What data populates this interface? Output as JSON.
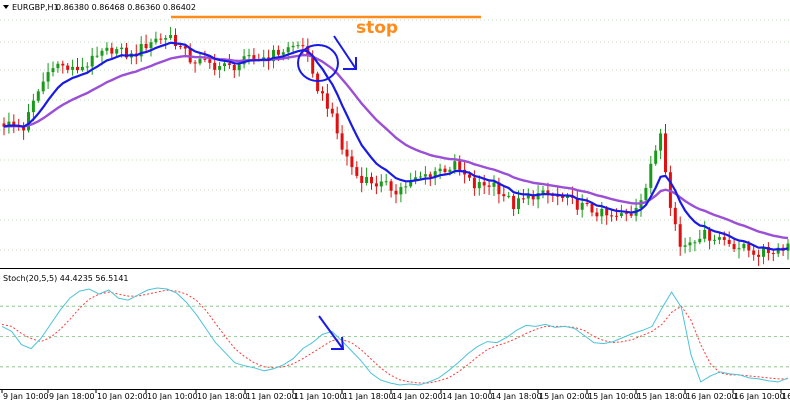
{
  "chart_data": {
    "type": "candlestick",
    "symbol": "EURGBP,H1",
    "ohlc_readout": "0.86380 0.86468 0.86360 0.86402",
    "indicator_label": "Stoch(20,5,5) 44.4235 56.5141",
    "annotation_text": "stop",
    "x_tick_labels": [
      "9 Jan 10:00",
      "9 Jan 18:00",
      "10 Jan 02:00",
      "10 Jan 10:00",
      "10 Jan 18:00",
      "11 Jan 02:00",
      "11 Jan 10:00",
      "11 Jan 18:00",
      "14 Jan 02:00",
      "14 Jan 10:00",
      "14 Jan 18:00",
      "15 Jan 02:00",
      "15 Jan 10:00",
      "15 Jan 18:00",
      "16 Jan 02:00",
      "16 Jan 10:00",
      "16"
    ],
    "colors": {
      "bull": "#1a9a1a",
      "bear": "#e01010",
      "ma_fast": "#1a1ae6",
      "ma_slow": "#9b4fd6",
      "stoch_main": "#4cc3d9",
      "stoch_signal": "#ff3b3b",
      "stop_line": "#ff8c1a",
      "annotation": "#1a1ae6",
      "grid": "#7fbf7f"
    },
    "anchors": [
      {
        "i": 0,
        "p": 86.6
      },
      {
        "i": 4,
        "p": 86.57
      },
      {
        "i": 7,
        "p": 86.8
      },
      {
        "i": 10,
        "p": 86.98
      },
      {
        "i": 14,
        "p": 86.93
      },
      {
        "i": 18,
        "p": 86.99
      },
      {
        "i": 22,
        "p": 87.07
      },
      {
        "i": 26,
        "p": 87.02
      },
      {
        "i": 30,
        "p": 87.12
      },
      {
        "i": 34,
        "p": 87.15
      },
      {
        "i": 38,
        "p": 87.0
      },
      {
        "i": 42,
        "p": 86.97
      },
      {
        "i": 46,
        "p": 86.95
      },
      {
        "i": 50,
        "p": 87.0
      },
      {
        "i": 54,
        "p": 87.02
      },
      {
        "i": 58,
        "p": 87.07
      },
      {
        "i": 61,
        "p": 87.1
      },
      {
        "i": 63,
        "p": 86.88
      },
      {
        "i": 66,
        "p": 86.72
      },
      {
        "i": 69,
        "p": 86.44
      },
      {
        "i": 72,
        "p": 86.27
      },
      {
        "i": 76,
        "p": 86.22
      },
      {
        "i": 80,
        "p": 86.18
      },
      {
        "i": 84,
        "p": 86.24
      },
      {
        "i": 88,
        "p": 86.3
      },
      {
        "i": 92,
        "p": 86.33
      },
      {
        "i": 96,
        "p": 86.2
      },
      {
        "i": 100,
        "p": 86.22
      },
      {
        "i": 104,
        "p": 86.08
      },
      {
        "i": 108,
        "p": 86.15
      },
      {
        "i": 112,
        "p": 86.14
      },
      {
        "i": 116,
        "p": 86.1
      },
      {
        "i": 120,
        "p": 86.05
      },
      {
        "i": 124,
        "p": 86.0
      },
      {
        "i": 128,
        "p": 86.03
      },
      {
        "i": 131,
        "p": 86.2
      },
      {
        "i": 134,
        "p": 86.55
      },
      {
        "i": 136,
        "p": 86.1
      },
      {
        "i": 138,
        "p": 85.82
      },
      {
        "i": 142,
        "p": 85.9
      },
      {
        "i": 146,
        "p": 85.88
      },
      {
        "i": 150,
        "p": 85.82
      },
      {
        "i": 154,
        "p": 85.78
      },
      {
        "i": 157,
        "p": 85.8
      },
      {
        "i": 160,
        "p": 85.84
      }
    ],
    "stoch_main": [
      60,
      55,
      42,
      38,
      48,
      62,
      76,
      88,
      95,
      97,
      92,
      96,
      88,
      86,
      91,
      96,
      98,
      97,
      93,
      84,
      72,
      58,
      44,
      34,
      24,
      21,
      19,
      16,
      18,
      22,
      28,
      38,
      44,
      52,
      55,
      46,
      36,
      26,
      14,
      7,
      4,
      2,
      3,
      2,
      5,
      9,
      16,
      24,
      33,
      40,
      45,
      44,
      49,
      56,
      61,
      60,
      62,
      59,
      60,
      58,
      51,
      44,
      43,
      45,
      49,
      53,
      56,
      60,
      78,
      94,
      79,
      32,
      5,
      11,
      15,
      13,
      12,
      9,
      8,
      6,
      5,
      9
    ],
    "stoch_signal": [
      62,
      60,
      53,
      48,
      45,
      49,
      57,
      67,
      78,
      87,
      92,
      94,
      92,
      90,
      90,
      92,
      94,
      96,
      95,
      92,
      86,
      76,
      63,
      50,
      38,
      30,
      24,
      20,
      19,
      20,
      23,
      28,
      34,
      40,
      46,
      47,
      44,
      37,
      28,
      19,
      12,
      7,
      5,
      4,
      4,
      6,
      9,
      15,
      22,
      30,
      37,
      41,
      44,
      48,
      53,
      57,
      60,
      60,
      60,
      59,
      56,
      50,
      46,
      44,
      45,
      47,
      51,
      55,
      62,
      74,
      80,
      66,
      42,
      23,
      14,
      12,
      12,
      11,
      10,
      9,
      8,
      8
    ],
    "stoch_levels": [
      80,
      50,
      20
    ]
  }
}
